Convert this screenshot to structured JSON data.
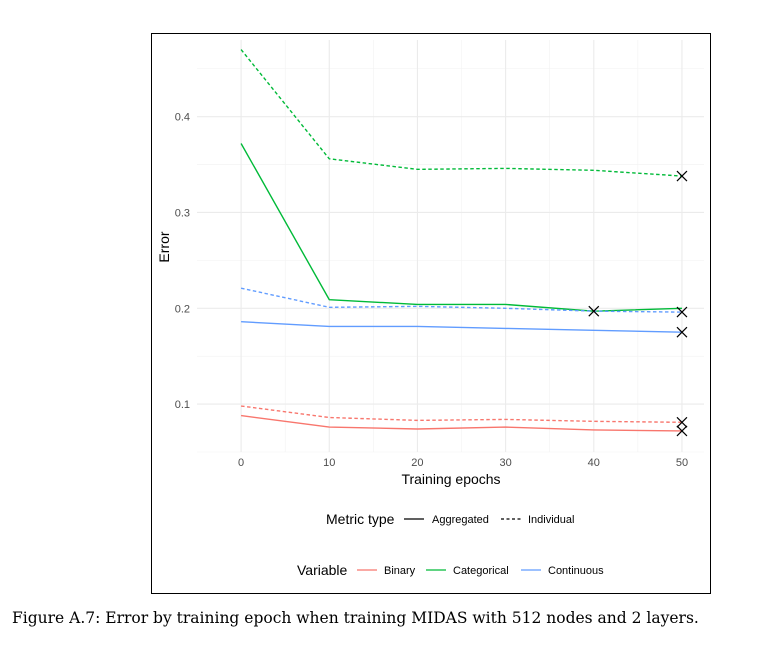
{
  "caption": "Figure A.7: Error by training epoch when training MIDAS with 512 nodes and 2 layers.",
  "chart_data": {
    "type": "line",
    "xlabel": "Training epochs",
    "ylabel": "Error",
    "x_ticks": [
      "0",
      "10",
      "20",
      "30",
      "40",
      "50"
    ],
    "y_ticks": [
      "0.1",
      "0.2",
      "0.3",
      "0.4"
    ],
    "xlim": [
      -5,
      52.5
    ],
    "ylim": [
      0.05,
      0.48
    ],
    "grid": true,
    "legend_position": "bottom",
    "legend": {
      "metric": {
        "title": "Metric type",
        "items": [
          "Aggregated",
          "Individual"
        ]
      },
      "variable": {
        "title": "Variable",
        "items": [
          "Binary",
          "Categorical",
          "Continuous"
        ]
      }
    },
    "colors": {
      "Binary": "#F8766D",
      "Categorical": "#00BA38",
      "Continuous": "#619CFF"
    },
    "x": [
      0,
      10,
      20,
      30,
      40,
      50
    ],
    "series": [
      {
        "variable": "Binary",
        "metric": "Aggregated",
        "values": [
          0.088,
          0.076,
          0.074,
          0.076,
          0.073,
          0.072
        ]
      },
      {
        "variable": "Binary",
        "metric": "Individual",
        "values": [
          0.098,
          0.086,
          0.083,
          0.084,
          0.082,
          0.081
        ]
      },
      {
        "variable": "Categorical",
        "metric": "Aggregated",
        "values": [
          0.372,
          0.209,
          0.204,
          0.204,
          0.197,
          0.2
        ]
      },
      {
        "variable": "Categorical",
        "metric": "Individual",
        "values": [
          0.47,
          0.356,
          0.345,
          0.346,
          0.344,
          0.338
        ]
      },
      {
        "variable": "Continuous",
        "metric": "Aggregated",
        "values": [
          0.186,
          0.181,
          0.181,
          0.179,
          0.177,
          0.175
        ]
      },
      {
        "variable": "Continuous",
        "metric": "Individual",
        "values": [
          0.221,
          0.201,
          0.202,
          0.2,
          0.197,
          0.196
        ]
      }
    ],
    "markers": [
      {
        "variable": "Categorical",
        "metric": "Aggregated",
        "x": 40,
        "y": 0.197,
        "shape": "x"
      },
      {
        "variable": "Categorical",
        "metric": "Individual",
        "x": 50,
        "y": 0.338,
        "shape": "x"
      },
      {
        "variable": "Continuous",
        "metric": "Individual",
        "x": 50,
        "y": 0.196,
        "shape": "x"
      },
      {
        "variable": "Continuous",
        "metric": "Aggregated",
        "x": 50,
        "y": 0.175,
        "shape": "x"
      },
      {
        "variable": "Binary",
        "metric": "Individual",
        "x": 50,
        "y": 0.081,
        "shape": "x"
      },
      {
        "variable": "Binary",
        "metric": "Aggregated",
        "x": 50,
        "y": 0.072,
        "shape": "x"
      }
    ]
  }
}
